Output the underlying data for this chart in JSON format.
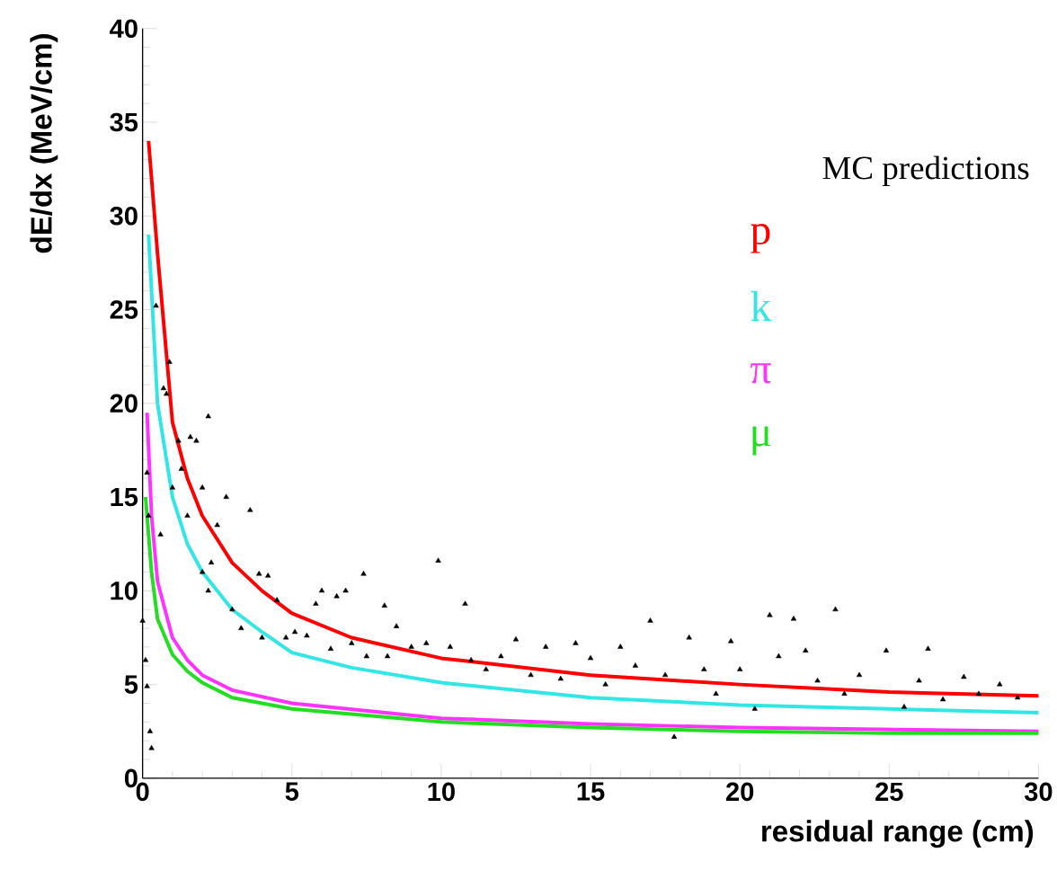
{
  "chart_data": {
    "type": "line",
    "xlabel": "residual range (cm)",
    "ylabel": "dE/dx (MeV/cm)",
    "annotations": [
      "MC predictions"
    ],
    "xlim": [
      0,
      30
    ],
    "ylim": [
      0,
      40
    ],
    "xticks": [
      0,
      5,
      10,
      15,
      20,
      25,
      30
    ],
    "yticks": [
      0,
      5,
      10,
      15,
      20,
      25,
      30,
      35,
      40
    ],
    "grid": false,
    "legend": "right",
    "line_style": "solid",
    "series": [
      {
        "type": "scatter",
        "marker": "triangle",
        "color": "#000000",
        "x": [
          0.0,
          0.1,
          0.15,
          0.25,
          0.3,
          0.15,
          0.2,
          0.45,
          0.9,
          0.7,
          0.8,
          1.2,
          1.6,
          1.8,
          2.2,
          1.3,
          1.0,
          2.0,
          2.5,
          2.8,
          1.5,
          0.6,
          2.0,
          2.3,
          3.6,
          2.2,
          3.0,
          3.3,
          3.9,
          4.2,
          4.5,
          4.0,
          4.8,
          5.1,
          5.5,
          5.8,
          6.0,
          6.5,
          6.8,
          7.4,
          6.3,
          7.0,
          7.5,
          8.1,
          8.5,
          8.2,
          9.0,
          9.5,
          9.9,
          10.3,
          10.8,
          11.0,
          11.5,
          12.0,
          12.5,
          13.0,
          13.5,
          14.0,
          14.5,
          15.0,
          15.5,
          16.0,
          16.5,
          17.0,
          17.5,
          17.8,
          18.3,
          18.8,
          19.2,
          19.7,
          20.0,
          20.5,
          21.0,
          21.3,
          21.8,
          22.2,
          22.6,
          23.2,
          23.5,
          24.0,
          24.9,
          25.5,
          26.0,
          26.3,
          26.8,
          27.5,
          28.0,
          28.7,
          29.3
        ],
        "values": [
          8.4,
          6.3,
          4.9,
          2.5,
          1.6,
          16.3,
          14.0,
          25.2,
          22.2,
          20.8,
          20.5,
          18.0,
          18.2,
          18.0,
          19.3,
          16.5,
          15.5,
          15.5,
          13.5,
          15.0,
          14.0,
          13.0,
          11.0,
          11.5,
          14.3,
          10.0,
          9.0,
          8.0,
          10.9,
          10.8,
          9.5,
          7.5,
          7.5,
          7.8,
          7.6,
          9.3,
          10.0,
          9.7,
          10.0,
          10.9,
          6.9,
          7.2,
          6.5,
          9.2,
          8.1,
          6.5,
          7.0,
          7.2,
          11.6,
          7.0,
          9.3,
          6.3,
          5.8,
          6.5,
          7.4,
          5.5,
          7.0,
          5.3,
          7.2,
          6.4,
          5.0,
          7.0,
          6.0,
          8.4,
          5.5,
          2.2,
          7.5,
          5.8,
          4.5,
          7.3,
          5.8,
          3.7,
          8.7,
          6.5,
          8.5,
          6.8,
          5.2,
          9.0,
          4.5,
          5.5,
          6.8,
          3.8,
          5.2,
          6.9,
          4.2,
          5.4,
          4.5,
          5.0,
          4.3
        ]
      },
      {
        "name": "p",
        "color": "#ff0000",
        "x": [
          0.2,
          0.5,
          1,
          1.5,
          2,
          3,
          4,
          5,
          7,
          10,
          15,
          20,
          25,
          30
        ],
        "values": [
          34,
          28,
          19,
          16,
          14,
          11.5,
          10,
          8.8,
          7.5,
          6.4,
          5.5,
          5.0,
          4.6,
          4.4
        ]
      },
      {
        "name": "k",
        "color": "#33e6e6",
        "x": [
          0.2,
          0.5,
          1,
          1.5,
          2,
          3,
          4,
          5,
          7,
          10,
          15,
          20,
          25,
          30
        ],
        "values": [
          29,
          20,
          15,
          12.5,
          11,
          9,
          7.8,
          6.7,
          5.9,
          5.1,
          4.3,
          3.9,
          3.7,
          3.5
        ]
      },
      {
        "name": "π",
        "color": "#ff33ff",
        "x": [
          0.15,
          0.3,
          0.5,
          1,
          1.5,
          2,
          3,
          5,
          10,
          15,
          20,
          25,
          30
        ],
        "values": [
          19.5,
          14,
          10.5,
          7.5,
          6.3,
          5.5,
          4.7,
          4.0,
          3.2,
          2.9,
          2.7,
          2.6,
          2.5
        ]
      },
      {
        "name": "μ",
        "color": "#22dd22",
        "x": [
          0.1,
          0.3,
          0.5,
          1,
          1.5,
          2,
          3,
          5,
          10,
          15,
          20,
          25,
          30
        ],
        "values": [
          15,
          11,
          8.5,
          6.6,
          5.7,
          5.1,
          4.3,
          3.7,
          3.0,
          2.7,
          2.5,
          2.4,
          2.4
        ]
      }
    ]
  }
}
